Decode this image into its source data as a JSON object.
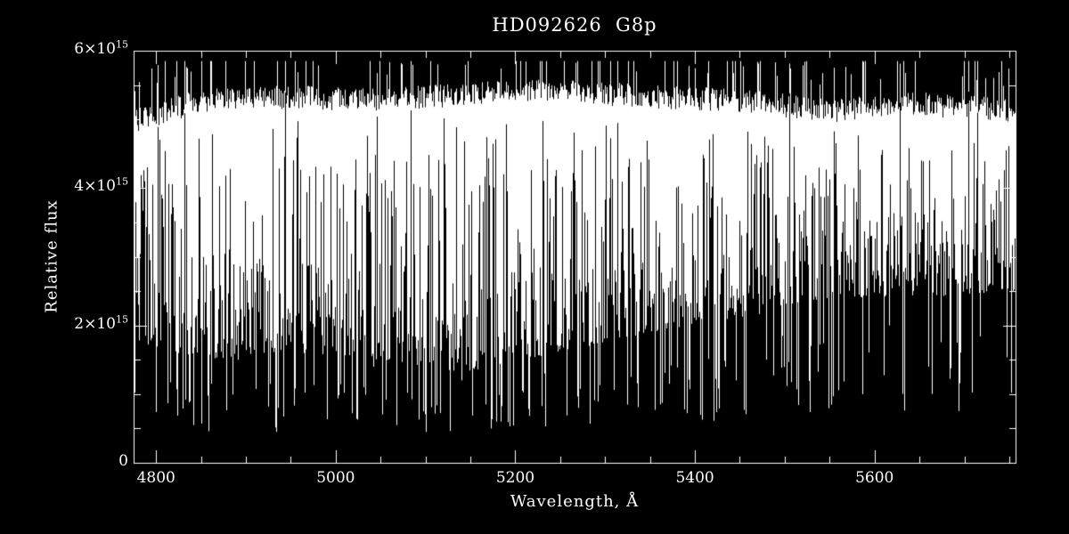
{
  "figure": {
    "background_color": "#000000",
    "foreground_color": "#ffffff"
  },
  "chart_data": {
    "type": "line",
    "title": "HD092626  G8p",
    "xlabel": "Wavelength, Å",
    "ylabel": "Relative flux",
    "xlim": [
      4775,
      5757
    ],
    "ylim": [
      0,
      6000000000000000.0
    ],
    "ylim_units_1e15": [
      0,
      6
    ],
    "grid": false,
    "legend": "none",
    "x_ticks": [
      4800,
      5000,
      5200,
      5400,
      5600
    ],
    "x_minor_step": 50,
    "y_ticks_1e15": [
      0,
      2,
      4,
      6
    ],
    "y_minor_step_1e15": 0.5,
    "y_tick_labels": [
      {
        "base": "0",
        "exp": ""
      },
      {
        "base": "2×10",
        "exp": "15"
      },
      {
        "base": "4×10",
        "exp": "15"
      },
      {
        "base": "6×10",
        "exp": "15"
      }
    ],
    "spectrum": {
      "description": "Dense stellar absorption-line spectrum (forest of narrow lines); per-pixel min/max envelope, flux in units of 1e15",
      "seed": 20240921,
      "continuum_envelope": {
        "x": [
          4775,
          4850,
          4950,
          5050,
          5150,
          5250,
          5350,
          5450,
          5550,
          5650,
          5757
        ],
        "top": [
          5.15,
          5.45,
          5.5,
          5.45,
          5.55,
          5.6,
          5.5,
          5.45,
          5.3,
          5.4,
          5.3
        ]
      },
      "forest_floor": {
        "x": [
          4775,
          4850,
          4950,
          5050,
          5150,
          5250,
          5350,
          5450,
          5550,
          5650,
          5757
        ],
        "level": [
          1.7,
          1.5,
          1.6,
          1.5,
          1.3,
          1.6,
          1.9,
          2.1,
          2.4,
          2.4,
          2.5
        ]
      },
      "deep_lines": [
        {
          "wavelength": 4861,
          "flux": 1.15
        },
        {
          "wavelength": 4891,
          "flux": 1.5
        },
        {
          "wavelength": 4934,
          "flux": 0.45
        },
        {
          "wavelength": 5018,
          "flux": 1.25
        },
        {
          "wavelength": 5042,
          "flux": 1.4
        },
        {
          "wavelength": 5110,
          "flux": 1.05
        },
        {
          "wavelength": 5140,
          "flux": 1.2
        },
        {
          "wavelength": 5167,
          "flux": 0.85
        },
        {
          "wavelength": 5173,
          "flux": 0.5
        },
        {
          "wavelength": 5184,
          "flux": 0.6
        },
        {
          "wavelength": 5207,
          "flux": 1.05
        },
        {
          "wavelength": 5232,
          "flux": 1.3
        },
        {
          "wavelength": 5270,
          "flux": 0.8
        },
        {
          "wavelength": 5328,
          "flux": 1.25
        },
        {
          "wavelength": 5371,
          "flux": 1.15
        },
        {
          "wavelength": 5406,
          "flux": 1.45
        },
        {
          "wavelength": 5446,
          "flux": 1.2
        },
        {
          "wavelength": 5497,
          "flux": 1.85
        },
        {
          "wavelength": 5529,
          "flux": 1.7
        },
        {
          "wavelength": 5616,
          "flux": 2.0
        }
      ]
    }
  }
}
